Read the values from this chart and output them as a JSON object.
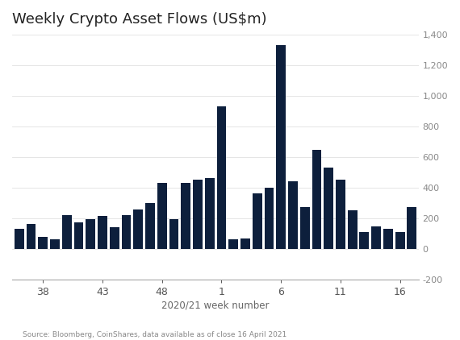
{
  "title": "Weekly Crypto Asset Flows (US$m)",
  "xlabel": "2020/21 week number",
  "source": "Source: Bloomberg, CoinShares, data available as of close 16 April 2021",
  "bar_color": "#0d1f3c",
  "background_color": "#ffffff",
  "ylim": [
    -200,
    1400
  ],
  "yticks": [
    -200,
    0,
    200,
    400,
    600,
    800,
    1000,
    1200,
    1400
  ],
  "xtick_labels": [
    "38",
    "43",
    "48",
    "1",
    "6",
    "11",
    "16"
  ],
  "values": [
    130,
    160,
    75,
    60,
    220,
    170,
    195,
    215,
    140,
    220,
    255,
    300,
    430,
    195,
    430,
    450,
    460,
    930,
    60,
    65,
    360,
    400,
    1330,
    440,
    270,
    645,
    530,
    450,
    250,
    110,
    145,
    130,
    110,
    270
  ]
}
